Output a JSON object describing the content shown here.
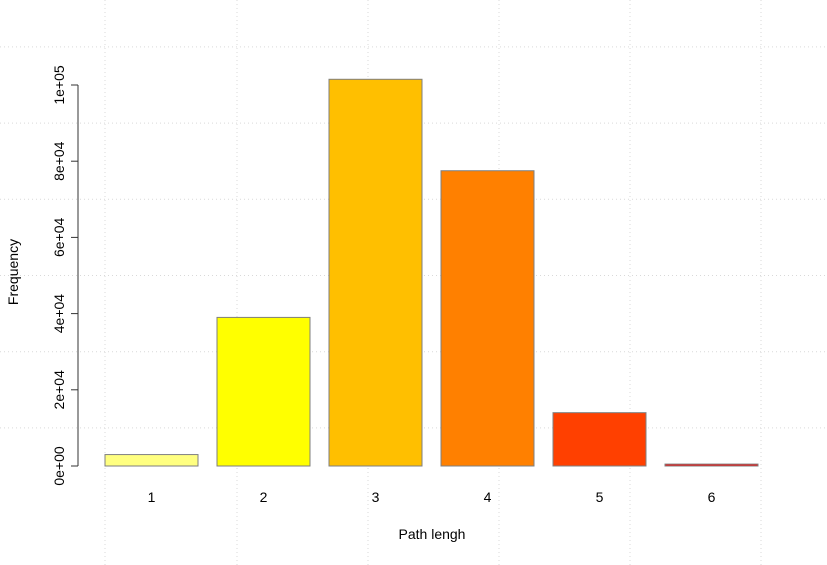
{
  "chart_data": {
    "type": "bar",
    "title": "",
    "xlabel": "Path lengh",
    "ylabel": "Frequency",
    "categories": [
      "1",
      "2",
      "3",
      "4",
      "5",
      "6"
    ],
    "values": [
      3000,
      39000,
      101500,
      77500,
      14000,
      500
    ],
    "colors": [
      "#ffff80",
      "#ffff00",
      "#ffbf00",
      "#ff8000",
      "#ff4000",
      "#ff0000"
    ],
    "ylim": [
      0,
      100000
    ],
    "yticks": [
      {
        "value": 0,
        "label": "0e+00"
      },
      {
        "value": 20000,
        "label": "2e+04"
      },
      {
        "value": 40000,
        "label": "4e+04"
      },
      {
        "value": 60000,
        "label": "6e+04"
      },
      {
        "value": 80000,
        "label": "8e+04"
      },
      {
        "value": 100000,
        "label": "1e+05"
      }
    ],
    "grid": true,
    "legend": "none"
  }
}
